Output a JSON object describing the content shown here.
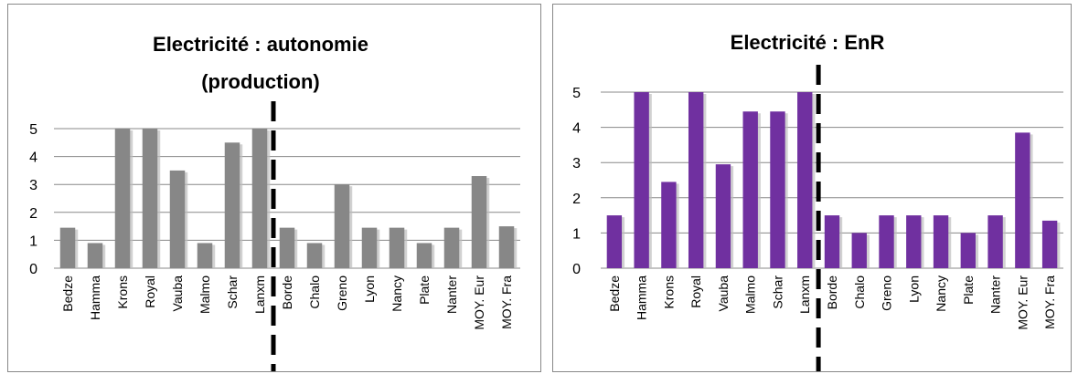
{
  "chart_data": [
    {
      "type": "bar",
      "title": "Electricité : autonomie (production)",
      "title_lines": [
        "Electricité : autonomie",
        "(production)"
      ],
      "categories": [
        "Bedze",
        "Hamma",
        "Krons",
        "Royal",
        "Vauba",
        "Malmo",
        "Schar",
        "Lanxm",
        "Borde",
        "Chalo",
        "Greno",
        "Lyon",
        "Nancy",
        "Plate",
        "Nanter",
        "MOY. Eur",
        "MOY. Fra"
      ],
      "values": [
        1.45,
        0.9,
        5,
        5,
        3.5,
        0.9,
        4.5,
        5,
        1.45,
        0.9,
        3,
        1.45,
        1.45,
        0.9,
        1.45,
        3.3,
        1.5
      ],
      "ylim": [
        0,
        5
      ],
      "yticks": [
        "0",
        "1",
        "2",
        "3",
        "4",
        "5"
      ],
      "xlabel": "",
      "ylabel": "",
      "grid": true,
      "legend": "none",
      "divider_after_category": "Lanxm",
      "colors": {
        "bar": "#878787",
        "grid": "#888888",
        "divider": "#000000"
      }
    },
    {
      "type": "bar",
      "title": "Electricité : EnR",
      "title_lines": [
        "Electricité : EnR"
      ],
      "categories": [
        "Bedze",
        "Hamma",
        "Krons",
        "Royal",
        "Vauba",
        "Malmo",
        "Schar",
        "Lanxm",
        "Borde",
        "Chalo",
        "Greno",
        "Lyon",
        "Nancy",
        "Plate",
        "Nanter",
        "MOY. Eur",
        "MOY. Fra"
      ],
      "values": [
        1.5,
        5,
        2.45,
        5,
        2.95,
        4.45,
        4.45,
        5,
        1.5,
        1,
        1.5,
        1.5,
        1.5,
        1,
        1.5,
        3.85,
        1.35
      ],
      "ylim": [
        0,
        5
      ],
      "yticks": [
        "0",
        "1",
        "2",
        "3",
        "4",
        "5"
      ],
      "xlabel": "",
      "ylabel": "",
      "grid": true,
      "legend": "none",
      "divider_after_category": "Lanxm",
      "colors": {
        "bar": "#7030a0",
        "grid": "#888888",
        "divider": "#000000"
      }
    }
  ]
}
